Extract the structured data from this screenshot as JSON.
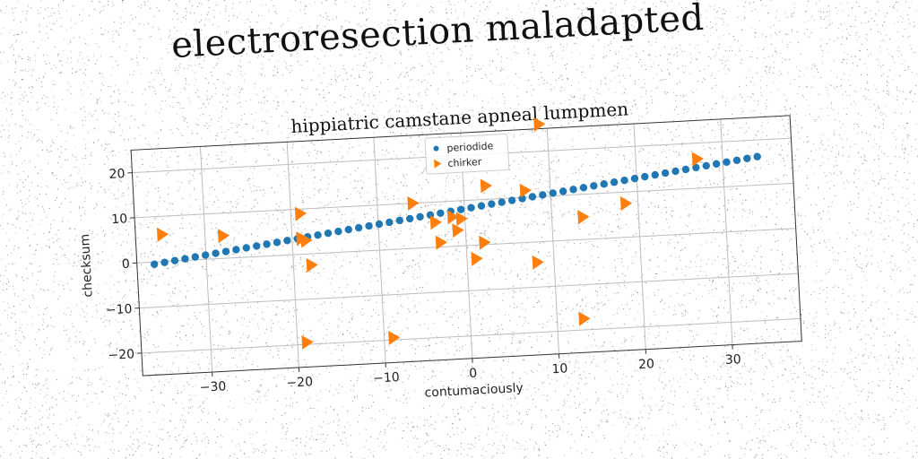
{
  "banner_title": "electroresection maladapted",
  "chart_data": {
    "type": "scatter",
    "title": "hippiatric camstane apneal lumpmen",
    "xlabel": "contumaciously",
    "ylabel": "checksum",
    "xlim": [
      -38,
      38
    ],
    "ylim": [
      -25,
      25
    ],
    "xticks": [
      -30,
      -20,
      -10,
      0,
      10,
      20,
      30
    ],
    "yticks": [
      -20,
      -10,
      0,
      10,
      20
    ],
    "xtick_labels": [
      "−30",
      "−20",
      "−10",
      "0",
      "10",
      "20",
      "30"
    ],
    "ytick_labels": [
      "−20",
      "−10",
      "0",
      "10",
      "20"
    ],
    "grid": true,
    "legend": {
      "placement": "top-center"
    },
    "series": [
      {
        "name": "periodide",
        "marker": "circle",
        "color": "#1f77b4",
        "line": {
          "x_start": -36,
          "x_end": 34,
          "y_start": -0.5,
          "y_end": 16.3,
          "count": 60
        }
      },
      {
        "name": "chirker",
        "marker": "triangle-right",
        "color": "#ff7f0e",
        "points": [
          [
            -35,
            6
          ],
          [
            -28,
            5
          ],
          [
            -19,
            9
          ],
          [
            -19,
            3.5
          ],
          [
            -18.5,
            3
          ],
          [
            -18,
            -2.5
          ],
          [
            -19,
            -19.5
          ],
          [
            -9,
            -19.5
          ],
          [
            -6,
            10
          ],
          [
            -3.5,
            5.5
          ],
          [
            -3,
            1
          ],
          [
            -1.5,
            6.5
          ],
          [
            -1,
            3.5
          ],
          [
            -0.5,
            6
          ],
          [
            1,
            -3
          ],
          [
            2,
            0.5
          ],
          [
            2.5,
            13
          ],
          [
            7,
            11.5
          ],
          [
            8,
            -4.5
          ],
          [
            9,
            26
          ],
          [
            13,
            -17.5
          ],
          [
            13.5,
            5
          ],
          [
            18.5,
            7.5
          ],
          [
            27,
            16.5
          ]
        ]
      }
    ]
  }
}
